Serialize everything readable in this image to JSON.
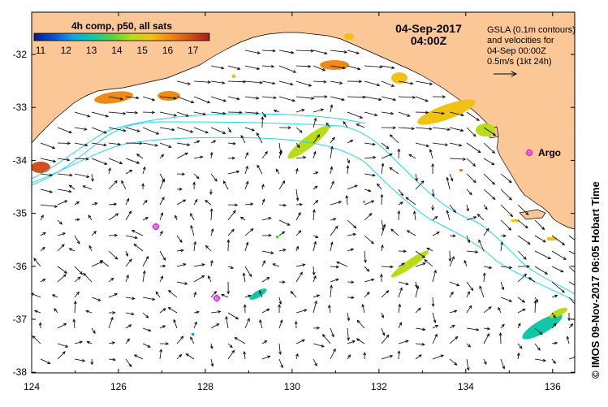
{
  "colorbar": {
    "title": "4h comp, p50, all sats",
    "ticks": [
      "11",
      "12",
      "13",
      "14",
      "15",
      "16",
      "17"
    ],
    "colors": [
      "#0a1a8c",
      "#0a4fd0",
      "#11a6e0",
      "#10c7a8",
      "#55d045",
      "#b8dc18",
      "#f0c214",
      "#f08a16",
      "#d2501a",
      "#a8201a"
    ]
  },
  "header": {
    "date": "04-Sep-2017",
    "time": "04:00Z"
  },
  "legend": {
    "line1": "GSLA (0.1m contours)",
    "line2": "and velocities for",
    "line3": "04-Sep 00:00Z",
    "line4": "0.5m/s (1kt 24h)"
  },
  "marker": {
    "label": "Argo",
    "color": "#e020e0"
  },
  "credit": "© IMOS 09-Nov-2017 06:05 Hobart Time",
  "axes": {
    "x_ticks": [
      "124",
      "126",
      "128",
      "130",
      "132",
      "134",
      "136"
    ],
    "y_ticks": [
      "-32",
      "-33",
      "-34",
      "-35",
      "-36",
      "-37",
      "-38"
    ]
  },
  "map_colors": {
    "land": "#fbc796",
    "ocean": "#ffffff",
    "contour": "#22d8e8",
    "arrows": "#000000"
  }
}
